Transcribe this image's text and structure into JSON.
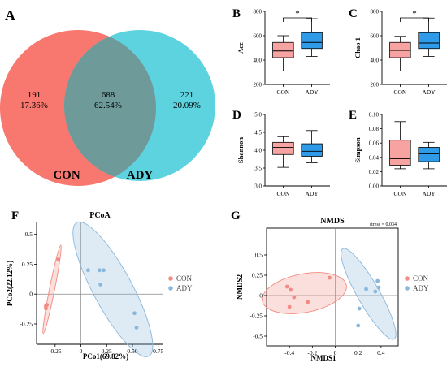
{
  "figure": {
    "panel_letters": [
      "A",
      "B",
      "C",
      "D",
      "E",
      "F",
      "G"
    ]
  },
  "chart_data": [
    {
      "panel": "A",
      "type": "venn",
      "sets": [
        {
          "name": "CON",
          "color": "#F8776E"
        },
        {
          "name": "ADY",
          "color": "#5ED3E0"
        }
      ],
      "regions": [
        {
          "region": "CON only",
          "count": "191",
          "percent": "17.36%"
        },
        {
          "region": "shared",
          "count": "688",
          "percent": "62.54%"
        },
        {
          "region": "ADY only",
          "count": "221",
          "percent": "20.09%"
        }
      ],
      "overlap_color": "#6E9A9A"
    },
    {
      "panel": "B",
      "type": "boxplot",
      "ylabel": "Ace",
      "ylim": [
        200,
        800
      ],
      "yticks": [
        "200",
        "400",
        "600",
        "800"
      ],
      "categories": [
        "CON",
        "ADY"
      ],
      "colors": [
        "#F7A3A1",
        "#2F9BE8"
      ],
      "boxes": [
        {
          "name": "CON",
          "min": 310,
          "q1": 420,
          "median": 475,
          "q3": 545,
          "max": 600
        },
        {
          "name": "ADY",
          "min": 430,
          "q1": 495,
          "median": 545,
          "q3": 625,
          "max": 740
        }
      ],
      "significance": "*"
    },
    {
      "panel": "C",
      "type": "boxplot",
      "ylabel": "Chao 1",
      "ylim": [
        200,
        800
      ],
      "yticks": [
        "200",
        "400",
        "600",
        "800"
      ],
      "categories": [
        "CON",
        "ADY"
      ],
      "colors": [
        "#F7A3A1",
        "#2F9BE8"
      ],
      "boxes": [
        {
          "name": "CON",
          "min": 310,
          "q1": 420,
          "median": 480,
          "q3": 545,
          "max": 595
        },
        {
          "name": "ADY",
          "min": 430,
          "q1": 495,
          "median": 540,
          "q3": 625,
          "max": 745
        }
      ],
      "significance": "*"
    },
    {
      "panel": "D",
      "type": "boxplot",
      "ylabel": "Shannon",
      "ylim": [
        3.0,
        5.0
      ],
      "yticks": [
        "3.0",
        "3.5",
        "4.0",
        "4.5",
        "5.0"
      ],
      "categories": [
        "CON",
        "ADY"
      ],
      "colors": [
        "#F7A3A1",
        "#2F9BE8"
      ],
      "boxes": [
        {
          "name": "CON",
          "min": 3.52,
          "q1": 3.88,
          "median": 4.08,
          "q3": 4.22,
          "max": 4.38
        },
        {
          "name": "ADY",
          "min": 3.65,
          "q1": 3.83,
          "median": 3.97,
          "q3": 4.18,
          "max": 4.55
        }
      ]
    },
    {
      "panel": "E",
      "type": "boxplot",
      "ylabel": "Simpson",
      "ylim": [
        0.0,
        0.1
      ],
      "yticks": [
        "0.00",
        "0.02",
        "0.04",
        "0.06",
        "0.08",
        "0.10"
      ],
      "categories": [
        "CON",
        "ADY"
      ],
      "colors": [
        "#F7A3A1",
        "#2F9BE8"
      ],
      "boxes": [
        {
          "name": "CON",
          "min": 0.024,
          "q1": 0.029,
          "median": 0.038,
          "q3": 0.064,
          "max": 0.09
        },
        {
          "name": "ADY",
          "min": 0.024,
          "q1": 0.034,
          "median": 0.045,
          "q3": 0.054,
          "max": 0.061
        }
      ]
    },
    {
      "panel": "F",
      "type": "scatter",
      "title": "PCoA",
      "xlabel": "PCo1(69.82%)",
      "ylabel": "PCo2(22.12%)",
      "xlim": [
        -0.43,
        0.8
      ],
      "ylim": [
        -0.42,
        0.6
      ],
      "xticks": [
        "-0.25",
        "0",
        "0.25",
        "0.50",
        "0.75"
      ],
      "yticks": [
        "-0.25",
        "0",
        "0.25",
        "0.5"
      ],
      "grid": false,
      "legend_position": "right",
      "series": [
        {
          "name": "CON",
          "color": "#F28B82",
          "x": [
            -0.22,
            -0.33,
            -0.34,
            -0.34
          ],
          "y": [
            0.29,
            -0.09,
            -0.12,
            -0.1
          ]
        },
        {
          "name": "ADY",
          "color": "#8AB8DC",
          "x": [
            0.07,
            0.18,
            0.22,
            0.19,
            0.52,
            0.54
          ],
          "y": [
            0.2,
            0.2,
            0.2,
            0.08,
            -0.16,
            -0.28
          ]
        }
      ],
      "ellipses": [
        {
          "name": "CON",
          "cx": -0.28,
          "cy": 0.04,
          "major": 0.38,
          "minor": 0.025,
          "angle": -103
        },
        {
          "name": "ADY",
          "cx": 0.31,
          "cy": 0.04,
          "major": 0.66,
          "minor": 0.18,
          "angle": -58
        }
      ]
    },
    {
      "panel": "G",
      "type": "scatter",
      "title": "NMDS",
      "annotation": "stress = 0.034",
      "xlabel": "NMDS1",
      "ylabel": "NMDS2",
      "xlim": [
        -0.6,
        0.55
      ],
      "ylim": [
        -0.62,
        0.83
      ],
      "xticks": [
        "-0.4",
        "-0.2",
        "0",
        "0.2",
        "0.4"
      ],
      "yticks": [
        "-0.5",
        "-0.25",
        "0",
        "0.25",
        "0.5"
      ],
      "grid": false,
      "legend_position": "right",
      "series": [
        {
          "name": "CON",
          "color": "#F28B82",
          "x": [
            -0.42,
            -0.39,
            -0.36,
            -0.24,
            -0.4,
            -0.05
          ],
          "y": [
            0.11,
            0.07,
            -0.02,
            -0.08,
            -0.14,
            0.22
          ]
        },
        {
          "name": "ADY",
          "color": "#8AB8DC",
          "x": [
            0.37,
            0.38,
            0.27,
            0.35,
            0.21,
            0.2
          ],
          "y": [
            0.18,
            0.1,
            0.08,
            0.05,
            -0.16,
            -0.37
          ]
        }
      ],
      "ellipses": [
        {
          "name": "CON",
          "cx": -0.27,
          "cy": 0.03,
          "major": 0.38,
          "minor": 0.23,
          "angle": 15
        },
        {
          "name": "ADY",
          "cx": 0.29,
          "cy": 0.02,
          "major": 0.6,
          "minor": 0.1,
          "angle": -68
        }
      ]
    }
  ]
}
